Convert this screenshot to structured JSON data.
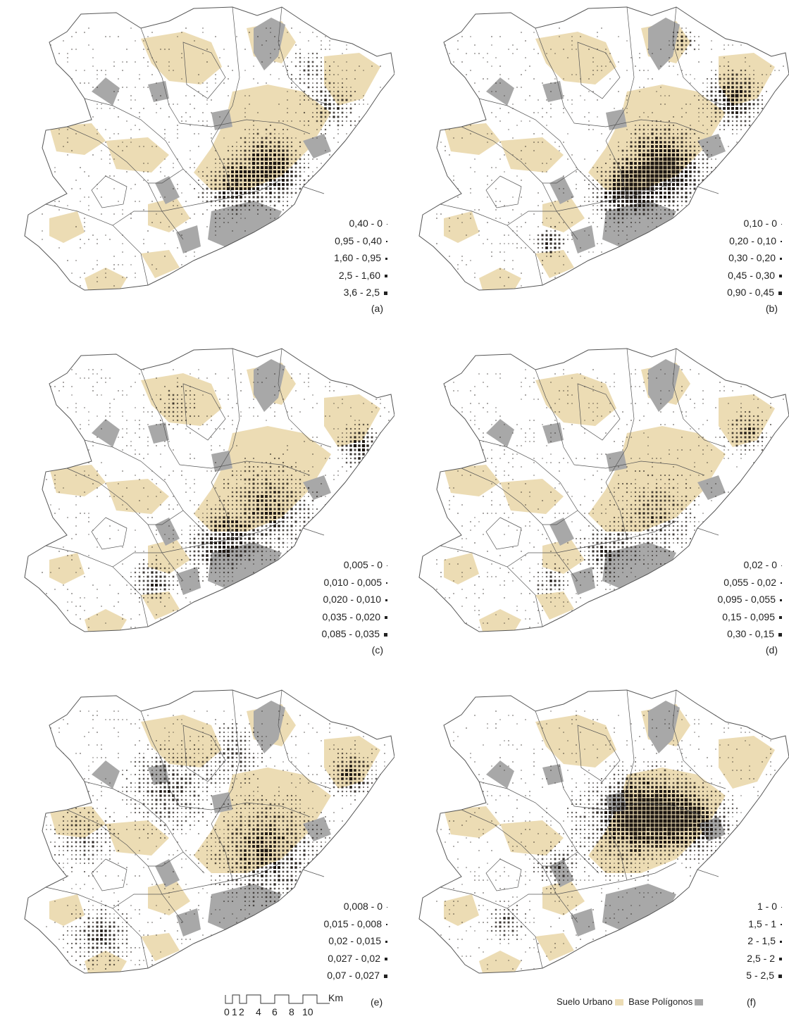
{
  "panels": [
    {
      "label": "(a)",
      "legend": [
        "0,40 - 0",
        "0,95 - 0,40",
        "1,60 - 0,95",
        "2,5 - 1,60",
        "3,6 - 2,5"
      ],
      "pattern": "center"
    },
    {
      "label": "(b)",
      "legend": [
        "0,10 - 0",
        "0,20 - 0,10",
        "0,30 - 0,20",
        "0,45 - 0,30",
        "0,90 - 0,45"
      ],
      "pattern": "center-strong"
    },
    {
      "label": "(c)",
      "legend": [
        "0,005 - 0",
        "0,010 - 0,005",
        "0,020 - 0,010",
        "0,035 - 0,020",
        "0,085 - 0,035"
      ],
      "pattern": "spread"
    },
    {
      "label": "(d)",
      "legend": [
        "0,02 - 0",
        "0,055 - 0,02",
        "0,095 - 0,055",
        "0,15 - 0,095",
        "0,30 - 0,15"
      ],
      "pattern": "light"
    },
    {
      "label": "(e)",
      "legend": [
        "0,008 - 0",
        "0,015 - 0,008",
        "0,02 - 0,015",
        "0,027 - 0,02",
        "0,07 - 0,027"
      ],
      "pattern": "dispersed"
    },
    {
      "label": "(f)",
      "legend": [
        "1 - 0",
        "1,5 - 1",
        "2 - 1,5",
        "2,5 - 2",
        "5 - 2,5"
      ],
      "pattern": "band"
    }
  ],
  "scale": {
    "ticks": [
      "0",
      "1",
      "2",
      "4",
      "6",
      "8",
      "10"
    ],
    "unit": "Km"
  },
  "bottom_legend": {
    "suelo_urbano": "Suelo Urbano",
    "base_poligonos": "Base Polígonos"
  },
  "colors": {
    "urban": "#ecdcb4",
    "base": "#a8a8a8",
    "dot": "#1a1410",
    "outline": "#555555"
  }
}
